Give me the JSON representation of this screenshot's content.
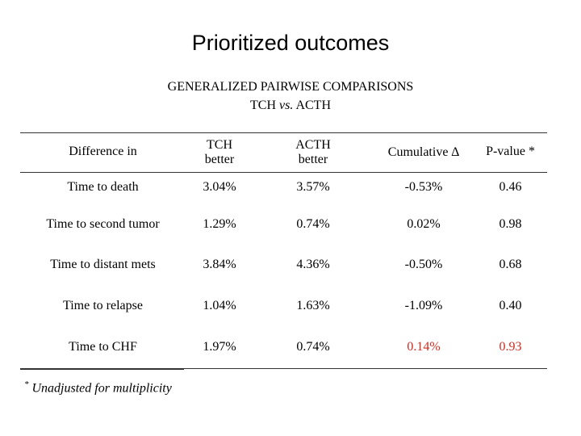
{
  "title": "Prioritized outcomes",
  "subtitle_line1": "GENERALIZED PAIRWISE COMPARISONS",
  "subtitle_line2_a": "TCH ",
  "subtitle_line2_vs": "vs.",
  "subtitle_line2_b": " ACTH",
  "columns": {
    "difference": "Difference in",
    "tch_1": "TCH",
    "tch_2": "better",
    "acth_1": "ACTH",
    "acth_2": "better",
    "cumulative": "Cumulative ∆",
    "pvalue": "P-value *"
  },
  "rows": [
    {
      "label": "Time to death",
      "tch": "3.04%",
      "acth": "3.57%",
      "cum": "-0.53%",
      "p": "0.46"
    },
    {
      "label": "Time to second tumor",
      "tch": "1.29%",
      "acth": "0.74%",
      "cum": "0.02%",
      "p": "0.98"
    },
    {
      "label": "Time to distant mets",
      "tch": "3.84%",
      "acth": "4.36%",
      "cum": "-0.50%",
      "p": "0.68"
    },
    {
      "label": "Time to relapse",
      "tch": "1.04%",
      "acth": "1.63%",
      "cum": "-1.09%",
      "p": "0.40"
    },
    {
      "label": "Time to CHF",
      "tch": "1.97%",
      "acth": "0.74%",
      "cum": "0.14%",
      "p": "0.93"
    }
  ],
  "footnote_mark": "*",
  "footnote_text": " Unadjusted for multiplicity",
  "highlight_color": "#d22b1e"
}
